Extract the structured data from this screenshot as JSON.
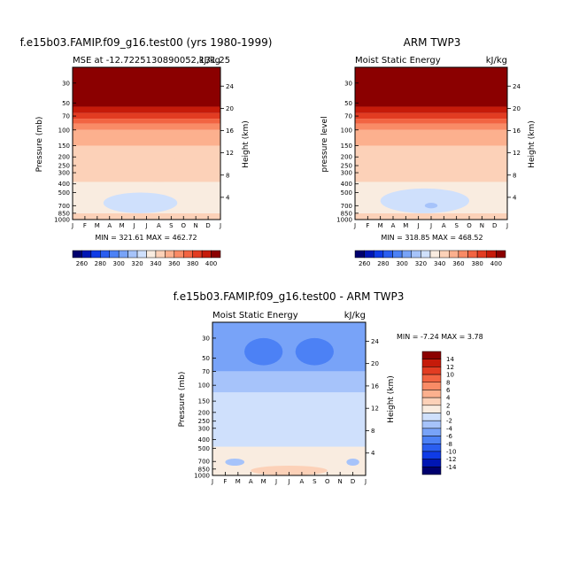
{
  "panels": [
    {
      "id": "model",
      "title": "f.e15b03.FAMIP.f09_g16.test00 (yrs 1980-1999)",
      "subtitle_left": "MSE at -12.7225130890052,131.25",
      "subtitle_right": "kJ/kg",
      "ylabel_left": "Pressure (mb)",
      "ylabel_right": "Height (km)",
      "stats": "MIN = 321.61 MAX = 462.72"
    },
    {
      "id": "obs",
      "title": "ARM TWP3",
      "subtitle_left": "Moist Static Energy",
      "subtitle_right": "kJ/kg",
      "ylabel_left": "pressure level",
      "ylabel_right": "Height (km)",
      "stats": "MIN = 318.85 MAX = 468.52"
    },
    {
      "id": "diff",
      "title": "f.e15b03.FAMIP.f09_g16.test00 - ARM TWP3",
      "subtitle_left": "Moist Static Energy",
      "subtitle_right": "kJ/kg",
      "ylabel_left": "Pressure (mb)",
      "ylabel_right": "Height (km)",
      "stats": "MIN =   -7.24 MAX =    3.78"
    }
  ],
  "chart_data": [
    {
      "type": "heatmap",
      "panel": "model",
      "title": "f.e15b03.FAMIP.f09_g16.test00 (yrs 1980-1999)",
      "xlabel": "",
      "ylabel": "Pressure (mb)",
      "x_ticks": [
        "J",
        "F",
        "M",
        "A",
        "M",
        "J",
        "J",
        "A",
        "S",
        "O",
        "N",
        "D",
        "J"
      ],
      "y_ticks_left": [
        30,
        50,
        70,
        100,
        150,
        200,
        250,
        300,
        400,
        500,
        700,
        850,
        1000
      ],
      "y_ticks_right": [
        24,
        20,
        16,
        12,
        8,
        4
      ],
      "ylim": [
        1000,
        20
      ],
      "units": "kJ/kg",
      "min": 321.61,
      "max": 462.72,
      "bands": [
        {
          "bottom": 1000,
          "top": 850,
          "level": 340
        },
        {
          "bottom": 850,
          "top": 380,
          "level": 330
        },
        {
          "bottom": 380,
          "top": 150,
          "level": 340
        },
        {
          "bottom": 150,
          "top": 100,
          "level": 350
        },
        {
          "bottom": 100,
          "top": 85,
          "level": 360
        },
        {
          "bottom": 85,
          "top": 75,
          "level": 370
        },
        {
          "bottom": 75,
          "top": 65,
          "level": 380
        },
        {
          "bottom": 65,
          "top": 55,
          "level": 390
        },
        {
          "bottom": 55,
          "top": 20,
          "level": 400
        }
      ],
      "features": [
        {
          "name": "low-MSE core",
          "level": 320,
          "x_month_range": [
            2.5,
            8.5
          ],
          "p_range": [
            500,
            850
          ]
        },
        {
          "name": "warm near-surface bulge",
          "level": 340,
          "x_month_range": [
            4.5,
            9.5
          ],
          "p_range": [
            200,
            380
          ]
        }
      ]
    },
    {
      "type": "heatmap",
      "panel": "obs",
      "title": "ARM TWP3",
      "xlabel": "",
      "ylabel": "pressure level",
      "x_ticks": [
        "J",
        "F",
        "M",
        "A",
        "M",
        "J",
        "J",
        "A",
        "S",
        "O",
        "N",
        "D",
        "J"
      ],
      "y_ticks_left": [
        30,
        50,
        70,
        100,
        150,
        200,
        250,
        300,
        400,
        500,
        700,
        850,
        1000
      ],
      "y_ticks_right": [
        24,
        20,
        16,
        12,
        8,
        4
      ],
      "ylim": [
        1000,
        20
      ],
      "units": "kJ/kg",
      "min": 318.85,
      "max": 468.52,
      "bands": [
        {
          "bottom": 1000,
          "top": 850,
          "level": 340
        },
        {
          "bottom": 850,
          "top": 380,
          "level": 330
        },
        {
          "bottom": 380,
          "top": 150,
          "level": 340
        },
        {
          "bottom": 150,
          "top": 100,
          "level": 350
        },
        {
          "bottom": 100,
          "top": 85,
          "level": 360
        },
        {
          "bottom": 85,
          "top": 75,
          "level": 370
        },
        {
          "bottom": 75,
          "top": 65,
          "level": 380
        },
        {
          "bottom": 65,
          "top": 55,
          "level": 390
        },
        {
          "bottom": 55,
          "top": 20,
          "level": 400
        }
      ],
      "features": [
        {
          "name": "low-MSE core",
          "level": 320,
          "x_month_range": [
            2.0,
            9.0
          ],
          "p_range": [
            450,
            850
          ]
        },
        {
          "name": "minimum pocket",
          "level": 310,
          "x_month_range": [
            5.5,
            6.5
          ],
          "p_range": [
            650,
            750
          ]
        }
      ]
    },
    {
      "type": "heatmap",
      "panel": "diff",
      "title": "f.e15b03.FAMIP.f09_g16.test00 - ARM TWP3",
      "xlabel": "",
      "ylabel": "Pressure (mb)",
      "x_ticks": [
        "J",
        "F",
        "M",
        "A",
        "M",
        "J",
        "J",
        "A",
        "S",
        "O",
        "N",
        "D",
        "J"
      ],
      "y_ticks_left": [
        30,
        50,
        70,
        100,
        150,
        200,
        250,
        300,
        400,
        500,
        700,
        850,
        1000
      ],
      "y_ticks_right": [
        24,
        20,
        16,
        12,
        8,
        4
      ],
      "ylim": [
        1000,
        20
      ],
      "units": "kJ/kg",
      "min": -7.24,
      "max": 3.78,
      "bands": [
        {
          "bottom": 1000,
          "top": 480,
          "level": 0
        },
        {
          "bottom": 480,
          "top": 120,
          "level": -2
        },
        {
          "bottom": 120,
          "top": 70,
          "level": -4
        },
        {
          "bottom": 70,
          "top": 20,
          "level": -6
        }
      ],
      "features": [
        {
          "name": "strong negative upper lobe A",
          "level": -8,
          "x_month_range": [
            2.5,
            5.5
          ],
          "p_range": [
            30,
            60
          ]
        },
        {
          "name": "strong negative upper lobe B",
          "level": -8,
          "x_month_range": [
            6.5,
            9.5
          ],
          "p_range": [
            30,
            60
          ]
        },
        {
          "name": "lower negative pocket A",
          "level": -4,
          "x_month_range": [
            1.0,
            2.5
          ],
          "p_range": [
            650,
            780
          ]
        },
        {
          "name": "lower negative pocket B",
          "level": -4,
          "x_month_range": [
            10.5,
            11.5
          ],
          "p_range": [
            650,
            780
          ]
        },
        {
          "name": "positive near-surface",
          "level": 2,
          "x_month_range": [
            3.0,
            9.0
          ],
          "p_range": [
            780,
            1000
          ]
        }
      ]
    }
  ],
  "colorbar_model": {
    "orientation": "horizontal",
    "labels": [
      "260",
      "280",
      "300",
      "320",
      "340",
      "360",
      "380",
      "400"
    ],
    "levels": [
      250,
      260,
      270,
      280,
      290,
      300,
      310,
      320,
      330,
      340,
      350,
      360,
      370,
      380,
      390,
      400,
      410
    ],
    "colors": [
      "#00006e",
      "#0016b4",
      "#0f3be6",
      "#2a5ef0",
      "#4c81f5",
      "#78a3f8",
      "#a6c3fa",
      "#cfe0fc",
      "#f9ece0",
      "#fcd1b8",
      "#fcb08e",
      "#f98b66",
      "#f26442",
      "#e23c22",
      "#c61b0a",
      "#8b0000"
    ]
  },
  "colorbar_diff": {
    "orientation": "vertical",
    "labels": [
      "14",
      "12",
      "10",
      "8",
      "6",
      "4",
      "2",
      "0",
      "-2",
      "-4",
      "-6",
      "-8",
      "-10",
      "-12",
      "-14"
    ],
    "colors": [
      "#8b0000",
      "#c61b0a",
      "#e23c22",
      "#f26442",
      "#f98b66",
      "#fcb08e",
      "#fcd1b8",
      "#f9ece0",
      "#cfe0fc",
      "#a6c3fa",
      "#78a3f8",
      "#4c81f5",
      "#2a5ef0",
      "#0f3be6",
      "#0016b4",
      "#00006e"
    ]
  }
}
